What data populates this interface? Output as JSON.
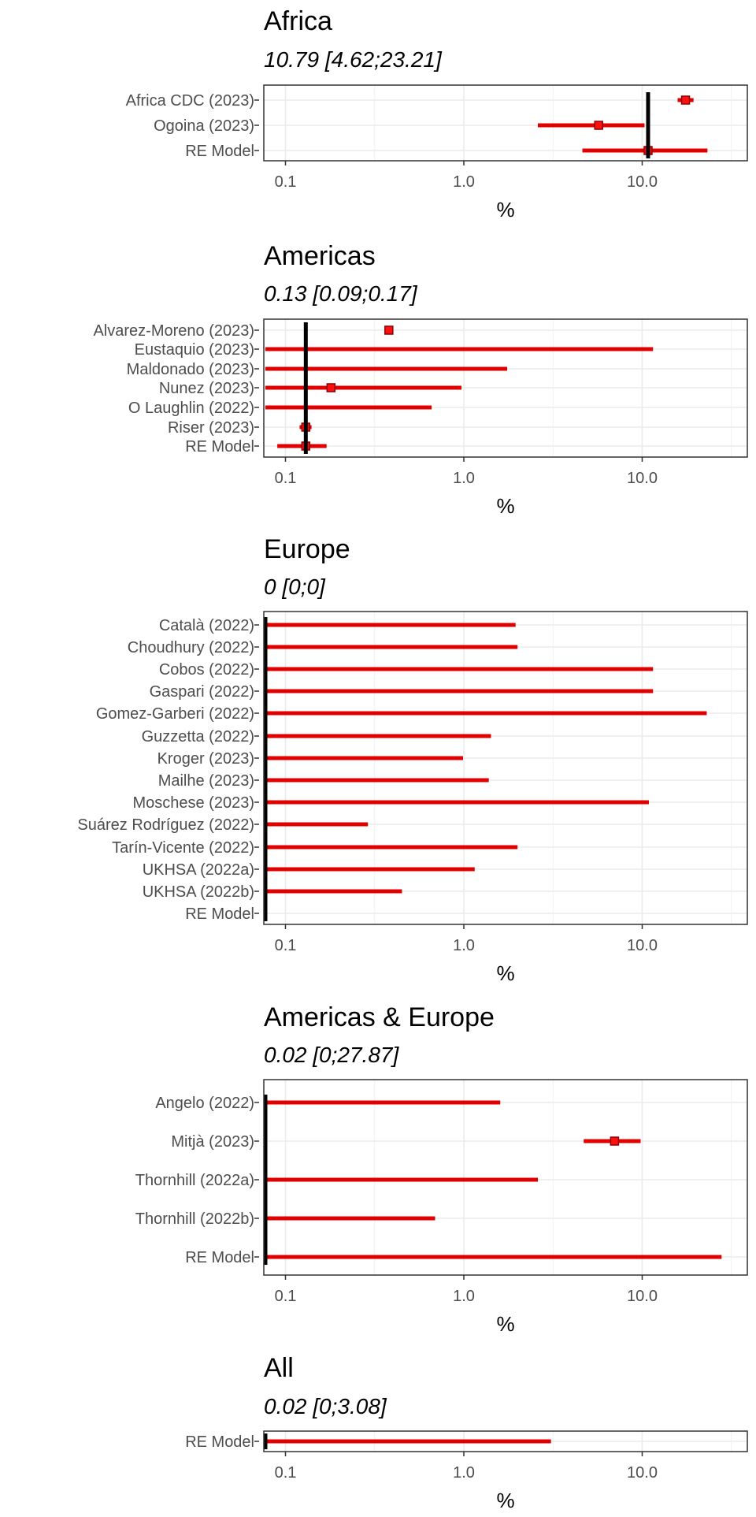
{
  "chart_data": [
    {
      "type": "forest",
      "title": "Africa",
      "subtitle": "10.79 [4.62;23.21]",
      "xlabel": "%",
      "xscale": "log",
      "xticks": [
        "0.1",
        "1.0",
        "10.0"
      ],
      "grid": true,
      "pooled": 10.79,
      "studies": [
        {
          "label": "Africa CDC (2023)",
          "est": 17.5,
          "lo": 15.8,
          "hi": 19.4
        },
        {
          "label": "Ogoina (2023)",
          "est": 5.7,
          "lo": 2.6,
          "hi": 10.3
        },
        {
          "label": "RE Model",
          "est": 10.79,
          "lo": 4.62,
          "hi": 23.21
        }
      ]
    },
    {
      "type": "forest",
      "title": "Americas",
      "subtitle": "0.13 [0.09;0.17]",
      "xlabel": "%",
      "xscale": "log",
      "xticks": [
        "0.1",
        "1.0",
        "10.0"
      ],
      "grid": true,
      "pooled": 0.13,
      "studies": [
        {
          "label": "Alvarez-Moreno (2023)",
          "est": 0.38,
          "lo": 0.37,
          "hi": 0.39
        },
        {
          "label": "Eustaquio (2023)",
          "est": 0.0,
          "lo": 0.0,
          "hi": 11.5
        },
        {
          "label": "Maldonado  (2023)",
          "est": 0.0,
          "lo": 0.0,
          "hi": 1.75
        },
        {
          "label": "Nunez (2023)",
          "est": 0.18,
          "lo": 0.0,
          "hi": 0.97
        },
        {
          "label": "O Laughlin (2022)",
          "est": 0.0,
          "lo": 0.0,
          "hi": 0.66
        },
        {
          "label": "Riser (2023)",
          "est": 0.13,
          "lo": 0.12,
          "hi": 0.14
        },
        {
          "label": "RE Model",
          "est": 0.13,
          "lo": 0.09,
          "hi": 0.17
        }
      ]
    },
    {
      "type": "forest",
      "title": "Europe",
      "subtitle": "0 [0;0]",
      "xlabel": "%",
      "xscale": "log",
      "xticks": [
        "0.1",
        "1.0",
        "10.0"
      ],
      "grid": true,
      "pooled": 0,
      "studies": [
        {
          "label": "Català (2022)",
          "est": 0.0,
          "lo": 0.0,
          "hi": 1.95
        },
        {
          "label": "Choudhury (2022)",
          "est": 0.0,
          "lo": 0.0,
          "hi": 2.0
        },
        {
          "label": "Cobos (2022)",
          "est": 0.0,
          "lo": 0.0,
          "hi": 11.5
        },
        {
          "label": "Gaspari (2022)",
          "est": 0.0,
          "lo": 0.0,
          "hi": 11.5
        },
        {
          "label": "Gomez-Garberi (2022)",
          "est": 0.0,
          "lo": 0.0,
          "hi": 23.0
        },
        {
          "label": "Guzzetta (2022)",
          "est": 0.0,
          "lo": 0.0,
          "hi": 1.42
        },
        {
          "label": "Kroger (2023)",
          "est": 0.0,
          "lo": 0.0,
          "hi": 0.99
        },
        {
          "label": "Mailhe (2023)",
          "est": 0.0,
          "lo": 0.0,
          "hi": 1.38
        },
        {
          "label": "Moschese (2023)",
          "est": 0.0,
          "lo": 0.0,
          "hi": 10.9
        },
        {
          "label": "Suárez Rodríguez (2022)",
          "est": 0.0,
          "lo": 0.0,
          "hi": 0.29
        },
        {
          "label": "Tarín-Vicente (2022)",
          "est": 0.0,
          "lo": 0.0,
          "hi": 2.0
        },
        {
          "label": "UKHSA (2022a)",
          "est": 0.0,
          "lo": 0.0,
          "hi": 1.15
        },
        {
          "label": "UKHSA (2022b)",
          "est": 0.0,
          "lo": 0.0,
          "hi": 0.45
        },
        {
          "label": "RE Model",
          "est": 0,
          "lo": 0,
          "hi": 0
        }
      ]
    },
    {
      "type": "forest",
      "title": "Americas & Europe",
      "subtitle": "0.02 [0;27.87]",
      "xlabel": "%",
      "xscale": "log",
      "xticks": [
        "0.1",
        "1.0",
        "10.0"
      ],
      "grid": true,
      "pooled": 0.02,
      "studies": [
        {
          "label": "Angelo (2022)",
          "est": 0.0,
          "lo": 0.0,
          "hi": 1.6
        },
        {
          "label": "Mitjà (2023)",
          "est": 7.0,
          "lo": 4.7,
          "hi": 9.8
        },
        {
          "label": "Thornhill (2022a)",
          "est": 0.0,
          "lo": 0.0,
          "hi": 2.6
        },
        {
          "label": "Thornhill (2022b)",
          "est": 0.0,
          "lo": 0.0,
          "hi": 0.69
        },
        {
          "label": "RE Model",
          "est": 0.02,
          "lo": 0.0,
          "hi": 27.87
        }
      ]
    },
    {
      "type": "forest",
      "title": "All",
      "subtitle": "0.02 [0;3.08]",
      "xlabel": "%",
      "xscale": "log",
      "xticks": [
        "0.1",
        "1.0",
        "10.0"
      ],
      "grid": true,
      "pooled": 0.02,
      "studies": [
        {
          "label": "RE Model",
          "est": 0.02,
          "lo": 0.0,
          "hi": 3.08
        }
      ]
    }
  ]
}
